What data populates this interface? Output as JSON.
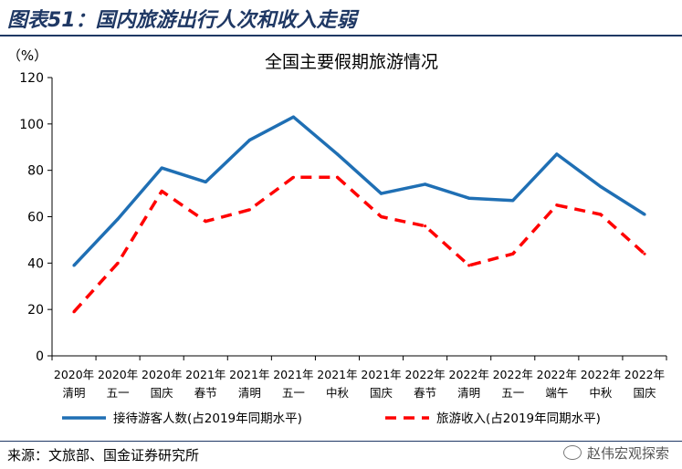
{
  "figure": {
    "title": "图表51：国内旅游出行人次和收入走弱",
    "source": "来源：文旅部、国金证券研究所",
    "watermark": "赵伟宏观探索",
    "watermark_icon": "wechat-icon"
  },
  "chart_data": {
    "type": "line",
    "title": "全国主要假期旅游情况",
    "ylabel": "（%）",
    "xlabel": "",
    "ylim": [
      0,
      120
    ],
    "yticks": [
      0,
      20,
      40,
      60,
      80,
      100,
      120
    ],
    "grid": false,
    "legend_position": "bottom",
    "categories": [
      [
        "2020年",
        "清明"
      ],
      [
        "2020年",
        "五一"
      ],
      [
        "2020年",
        "国庆"
      ],
      [
        "2021年",
        "春节"
      ],
      [
        "2021年",
        "清明"
      ],
      [
        "2021年",
        "五一"
      ],
      [
        "2021年",
        "中秋"
      ],
      [
        "2021年",
        "国庆"
      ],
      [
        "2022年",
        "春节"
      ],
      [
        "2022年",
        "清明"
      ],
      [
        "2022年",
        "五一"
      ],
      [
        "2022年",
        "端午"
      ],
      [
        "2022年",
        "中秋"
      ],
      [
        "2022年",
        "国庆"
      ]
    ],
    "series": [
      {
        "name": "接待游客人数(占2019年同期水平)",
        "color": "#1f6fb4",
        "style": "solid",
        "values": [
          39,
          59,
          81,
          75,
          93,
          103,
          87,
          70,
          74,
          68,
          67,
          87,
          73,
          61
        ]
      },
      {
        "name": "旅游收入(占2019年同期水平)",
        "color": "#ff0000",
        "style": "dashed",
        "values": [
          19,
          40,
          71,
          58,
          63,
          77,
          77,
          60,
          56,
          39,
          44,
          65,
          61,
          44
        ]
      }
    ]
  }
}
